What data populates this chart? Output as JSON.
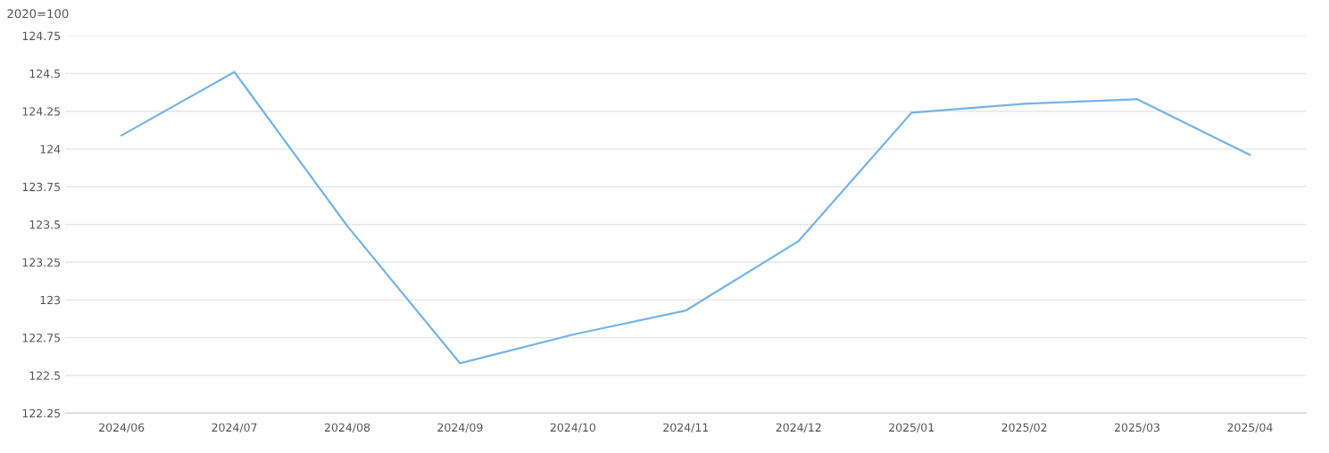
{
  "chart_data": {
    "type": "line",
    "ylabel": "2020=100",
    "categories": [
      "2024/06",
      "2024/07",
      "2024/08",
      "2024/09",
      "2024/10",
      "2024/11",
      "2024/12",
      "2025/01",
      "2025/02",
      "2025/03",
      "2025/04"
    ],
    "series": [
      {
        "color": "#73b3ea",
        "values": [
          124.09,
          124.51,
          123.49,
          122.58,
          122.77,
          122.93,
          123.39,
          124.24,
          124.3,
          124.33,
          123.96
        ]
      }
    ],
    "ylim": [
      122.25,
      124.75
    ],
    "yticks": [
      122.25,
      122.5,
      122.75,
      123,
      123.25,
      123.5,
      123.75,
      124,
      124.25,
      124.5,
      124.75
    ],
    "grid": "y",
    "legend": false,
    "marker": "none",
    "line_style": "solid"
  }
}
